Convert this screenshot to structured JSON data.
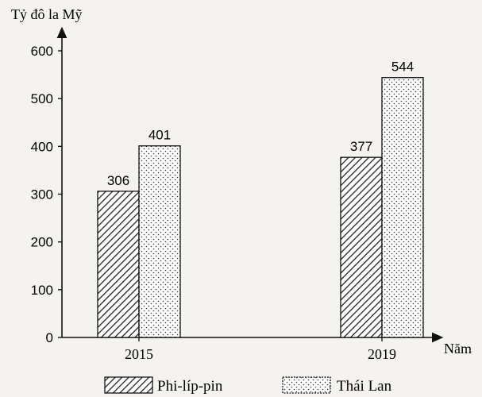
{
  "chart_data": {
    "type": "bar",
    "categories": [
      "2015",
      "2019"
    ],
    "series": [
      {
        "name": "Phi-líp-pin",
        "values": [
          306,
          377
        ],
        "pattern": "hatch"
      },
      {
        "name": "Thái Lan",
        "values": [
          401,
          544
        ],
        "pattern": "dots"
      }
    ],
    "ylabel": "Tỷ đô la Mỹ",
    "xlabel": "Năm",
    "ylim": [
      0,
      600
    ],
    "yticks": [
      0,
      100,
      200,
      300,
      400,
      500,
      600
    ],
    "grid": false,
    "legend_position": "bottom"
  }
}
